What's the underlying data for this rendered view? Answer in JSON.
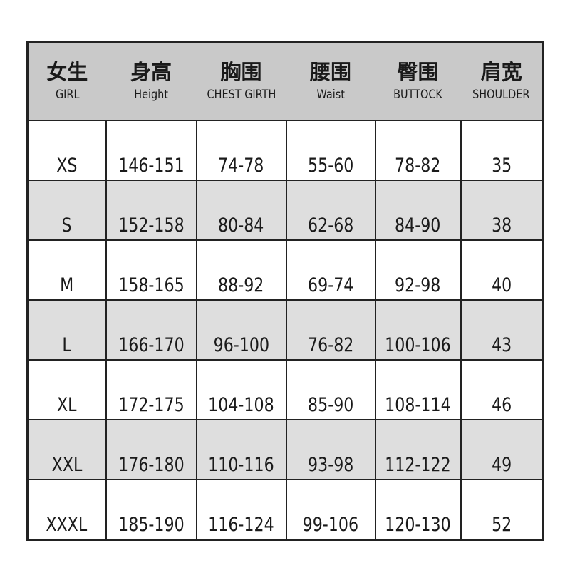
{
  "headers": [
    {
      "zh": "女生",
      "en": "GIRL"
    },
    {
      "zh": "身高",
      "en": "Height"
    },
    {
      "zh": "胸围",
      "en": "CHEST GIRTH"
    },
    {
      "zh": "腰围",
      "en": "Waist"
    },
    {
      "zh": "臀围",
      "en": "BUTTOCK"
    },
    {
      "zh": "肩宽",
      "en": "SHOULDER"
    }
  ],
  "rows": [
    [
      "XS",
      "146-151",
      "74-78",
      "55-60",
      "78-82",
      "35"
    ],
    [
      "S",
      "152-158",
      "80-84",
      "62-68",
      "84-90",
      "38"
    ],
    [
      "M",
      "158-165",
      "88-92",
      "69-74",
      "92-98",
      "40"
    ],
    [
      "L",
      "166-170",
      "96-100",
      "76-82",
      "100-106",
      "43"
    ],
    [
      "XL",
      "172-175",
      "104-108",
      "85-90",
      "108-114",
      "46"
    ],
    [
      "XXL",
      "176-180",
      "110-116",
      "93-98",
      "112-122",
      "49"
    ],
    [
      "XXXL",
      "185-190",
      "116-124",
      "99-106",
      "120-130",
      "52"
    ]
  ],
  "colors": {
    "header_bg": "#c9c9c9",
    "alt_row_bg": "#dedede",
    "border": "#222222"
  }
}
